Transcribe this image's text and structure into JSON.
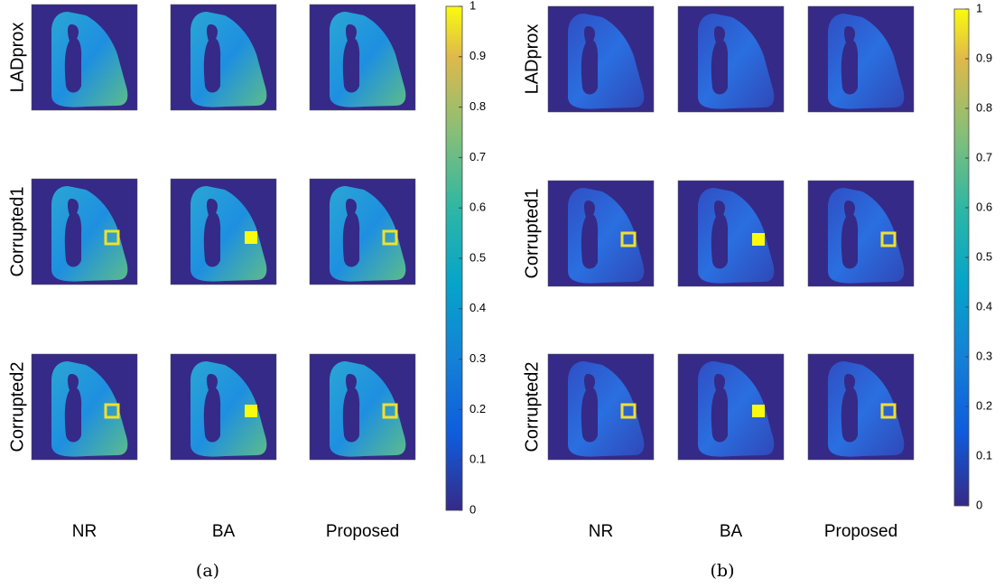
{
  "panels": [
    {
      "row_labels": [
        "LADprox",
        "Corrupted1",
        "Corrupted2"
      ],
      "column_labels": [
        "NR",
        "BA",
        "Proposed"
      ],
      "colorbar": {
        "lim": [
          0,
          1
        ],
        "ticks": [
          0,
          0.1,
          0.2,
          0.3,
          0.4,
          0.5,
          0.6,
          0.7,
          0.8,
          0.9,
          1
        ]
      },
      "caption": "(a)"
    },
    {
      "row_labels": [
        "LADprox",
        "Corrupted1",
        "Corrupted2"
      ],
      "column_labels": [
        "NR",
        "BA",
        "Proposed"
      ],
      "colorbar": {
        "lim": [
          0,
          1
        ],
        "ticks": [
          0,
          0.1,
          0.2,
          0.3,
          0.4,
          0.5,
          0.6,
          0.7,
          0.8,
          0.9,
          1
        ]
      },
      "caption": "(b)"
    }
  ]
}
